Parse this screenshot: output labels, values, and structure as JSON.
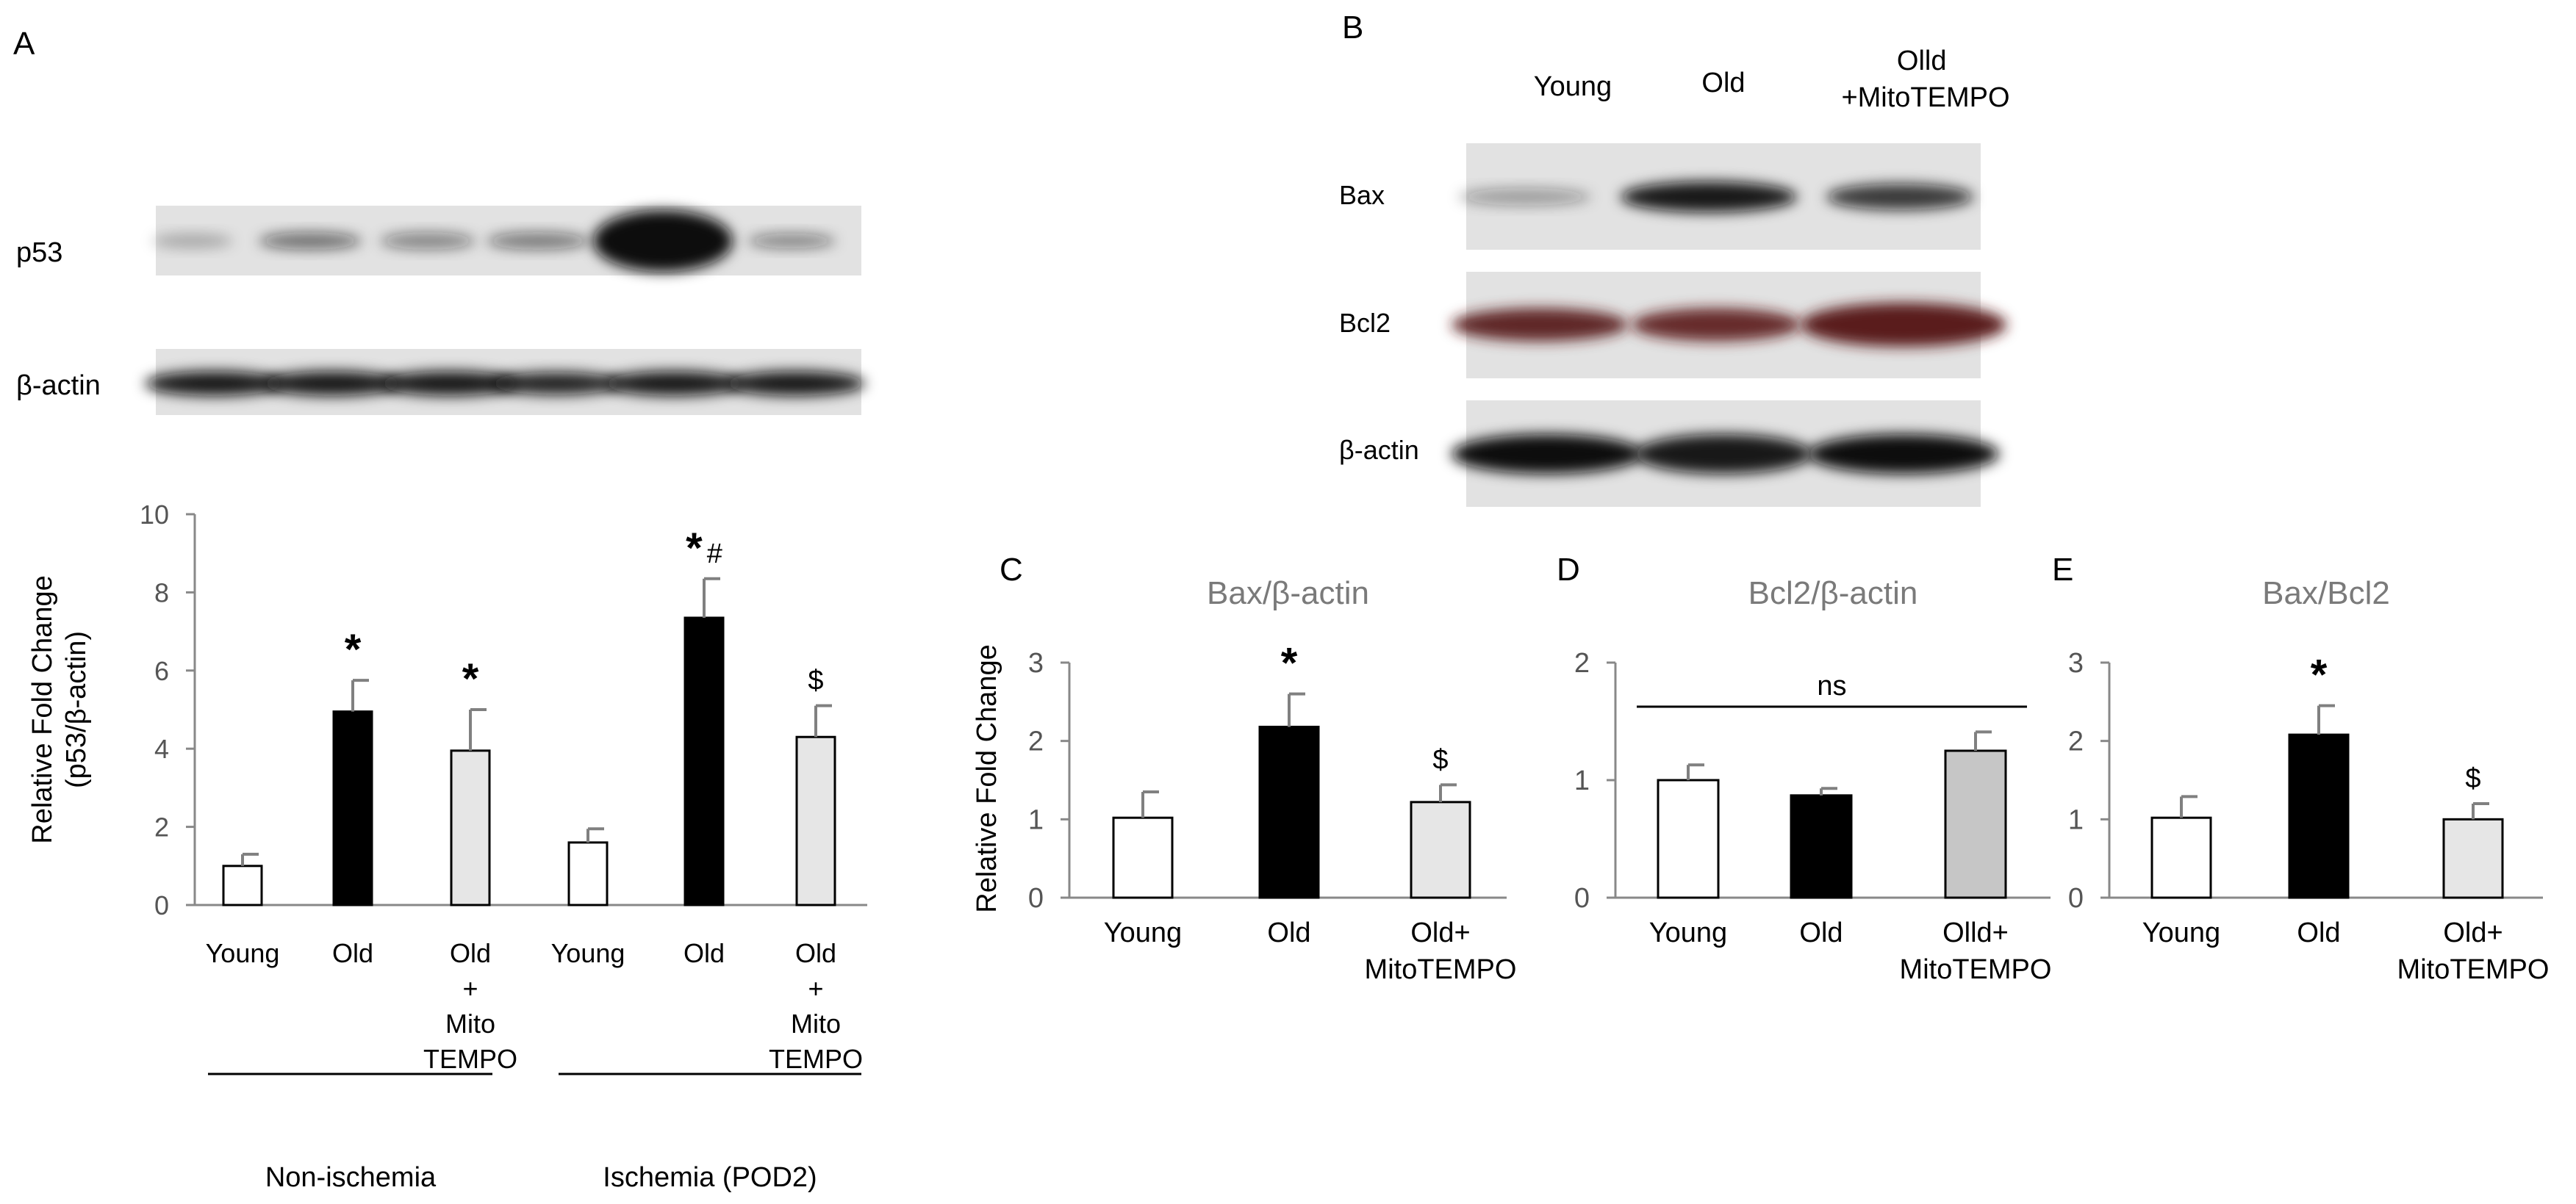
{
  "colors": {
    "black_bar": "#000000",
    "white_bar": "#ffffff",
    "light_gray_bar": "#e6e6e6",
    "mid_gray_bar": "#c6c6c6",
    "error_bar": "#808080",
    "title_text": "#7a7a7a",
    "western_band_dark": "#111111",
    "western_band_red": "#5a1a1a"
  },
  "panels": {
    "A": {
      "letter": "A",
      "blot_labels": [
        "p53",
        "β-actin"
      ],
      "group_labels": [
        "Non-ischemia",
        "Ischemia (POD2)"
      ],
      "icons": [
        "western-blot-p53",
        "western-blot-b-actin"
      ]
    },
    "B": {
      "letter": "B",
      "lane_labels": [
        "Young",
        "Old",
        "Olld\n+MitoTEMPO"
      ],
      "blot_labels": [
        "Bax",
        "Bcl2",
        "β-actin"
      ]
    },
    "C": {
      "letter": "C"
    },
    "D": {
      "letter": "D"
    },
    "E": {
      "letter": "E"
    }
  },
  "chart_data": [
    {
      "id": "A",
      "type": "bar",
      "title": "",
      "ylabel": "Relative Fold Change\n(p53/β-actin)",
      "xlabel": "",
      "ylim": [
        0,
        10
      ],
      "yticks": [
        0,
        2,
        4,
        6,
        8,
        10
      ],
      "categories": [
        "Young",
        "Old",
        "Old\n+\nMito\nTEMPO",
        "Young",
        "Old",
        "Old\n+\nMito\nTEMPO"
      ],
      "values": [
        1.0,
        4.95,
        3.95,
        1.6,
        7.35,
        4.3
      ],
      "errors": [
        0.3,
        0.8,
        1.05,
        0.35,
        1.0,
        0.8
      ],
      "fills": [
        "white",
        "black",
        "light",
        "white",
        "black",
        "light"
      ],
      "annotations": [
        "",
        "*",
        "*",
        "",
        "*#",
        "$"
      ],
      "grid": false
    },
    {
      "id": "C",
      "type": "bar",
      "title": "Bax/β-actin",
      "ylabel": "Relative Fold Change",
      "xlabel": "",
      "ylim": [
        0,
        3
      ],
      "yticks": [
        0,
        1,
        2,
        3
      ],
      "categories": [
        "Young",
        "Old",
        "Old+\nMitoTEMPO"
      ],
      "values": [
        1.02,
        2.18,
        1.22
      ],
      "errors": [
        0.33,
        0.42,
        0.22
      ],
      "fills": [
        "white",
        "black",
        "light"
      ],
      "annotations": [
        "",
        "*",
        "$"
      ],
      "grid": false
    },
    {
      "id": "D",
      "type": "bar",
      "title": "Bcl2/β-actin",
      "ylabel": "",
      "xlabel": "",
      "ylim": [
        0,
        2
      ],
      "yticks": [
        0,
        1,
        2
      ],
      "categories": [
        "Young",
        "Old",
        "Olld+\nMitoTEMPO"
      ],
      "values": [
        1.0,
        0.87,
        1.25
      ],
      "errors": [
        0.13,
        0.06,
        0.16
      ],
      "fills": [
        "white",
        "black",
        "mid"
      ],
      "annotations": [
        "",
        "",
        ""
      ],
      "bracket_label": "ns",
      "grid": false
    },
    {
      "id": "E",
      "type": "bar",
      "title": "Bax/Bcl2",
      "ylabel": "",
      "xlabel": "",
      "ylim": [
        0,
        3
      ],
      "yticks": [
        0,
        1,
        2,
        3
      ],
      "categories": [
        "Young",
        "Old",
        "Old+\nMitoTEMPO"
      ],
      "values": [
        1.02,
        2.08,
        1.0
      ],
      "errors": [
        0.27,
        0.37,
        0.2
      ],
      "fills": [
        "white",
        "black",
        "light"
      ],
      "annotations": [
        "",
        "*",
        "$"
      ],
      "grid": false
    }
  ]
}
